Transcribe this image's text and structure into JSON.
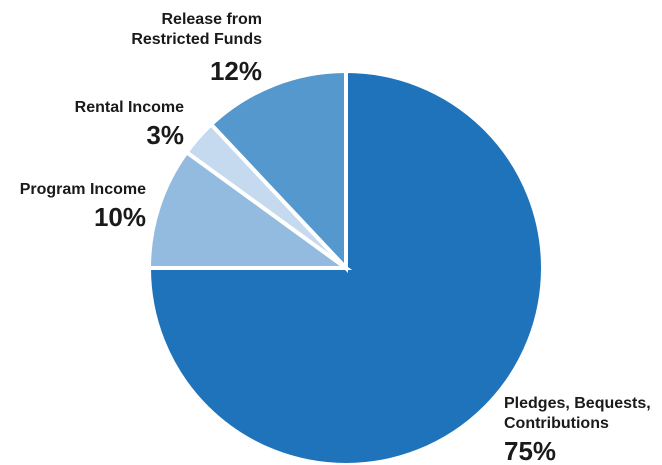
{
  "chart_data": {
    "type": "pie",
    "categories": [
      "Pledges, Bequests, Contributions",
      "Program Income",
      "Rental Income",
      "Release from Restricted Funds"
    ],
    "values": [
      75,
      10,
      3,
      12
    ],
    "colors": [
      "#1f73bb",
      "#92bbdf",
      "#c5daef",
      "#5598cd"
    ],
    "labels": [
      {
        "lines": [
          "Pledges, Bequests,",
          "Contributions"
        ],
        "pct": "75%"
      },
      {
        "lines": [
          "Program Income"
        ],
        "pct": "10%"
      },
      {
        "lines": [
          "Rental Income"
        ],
        "pct": "3%"
      },
      {
        "lines": [
          "Release from",
          "Restricted Funds"
        ],
        "pct": "12%"
      }
    ]
  }
}
